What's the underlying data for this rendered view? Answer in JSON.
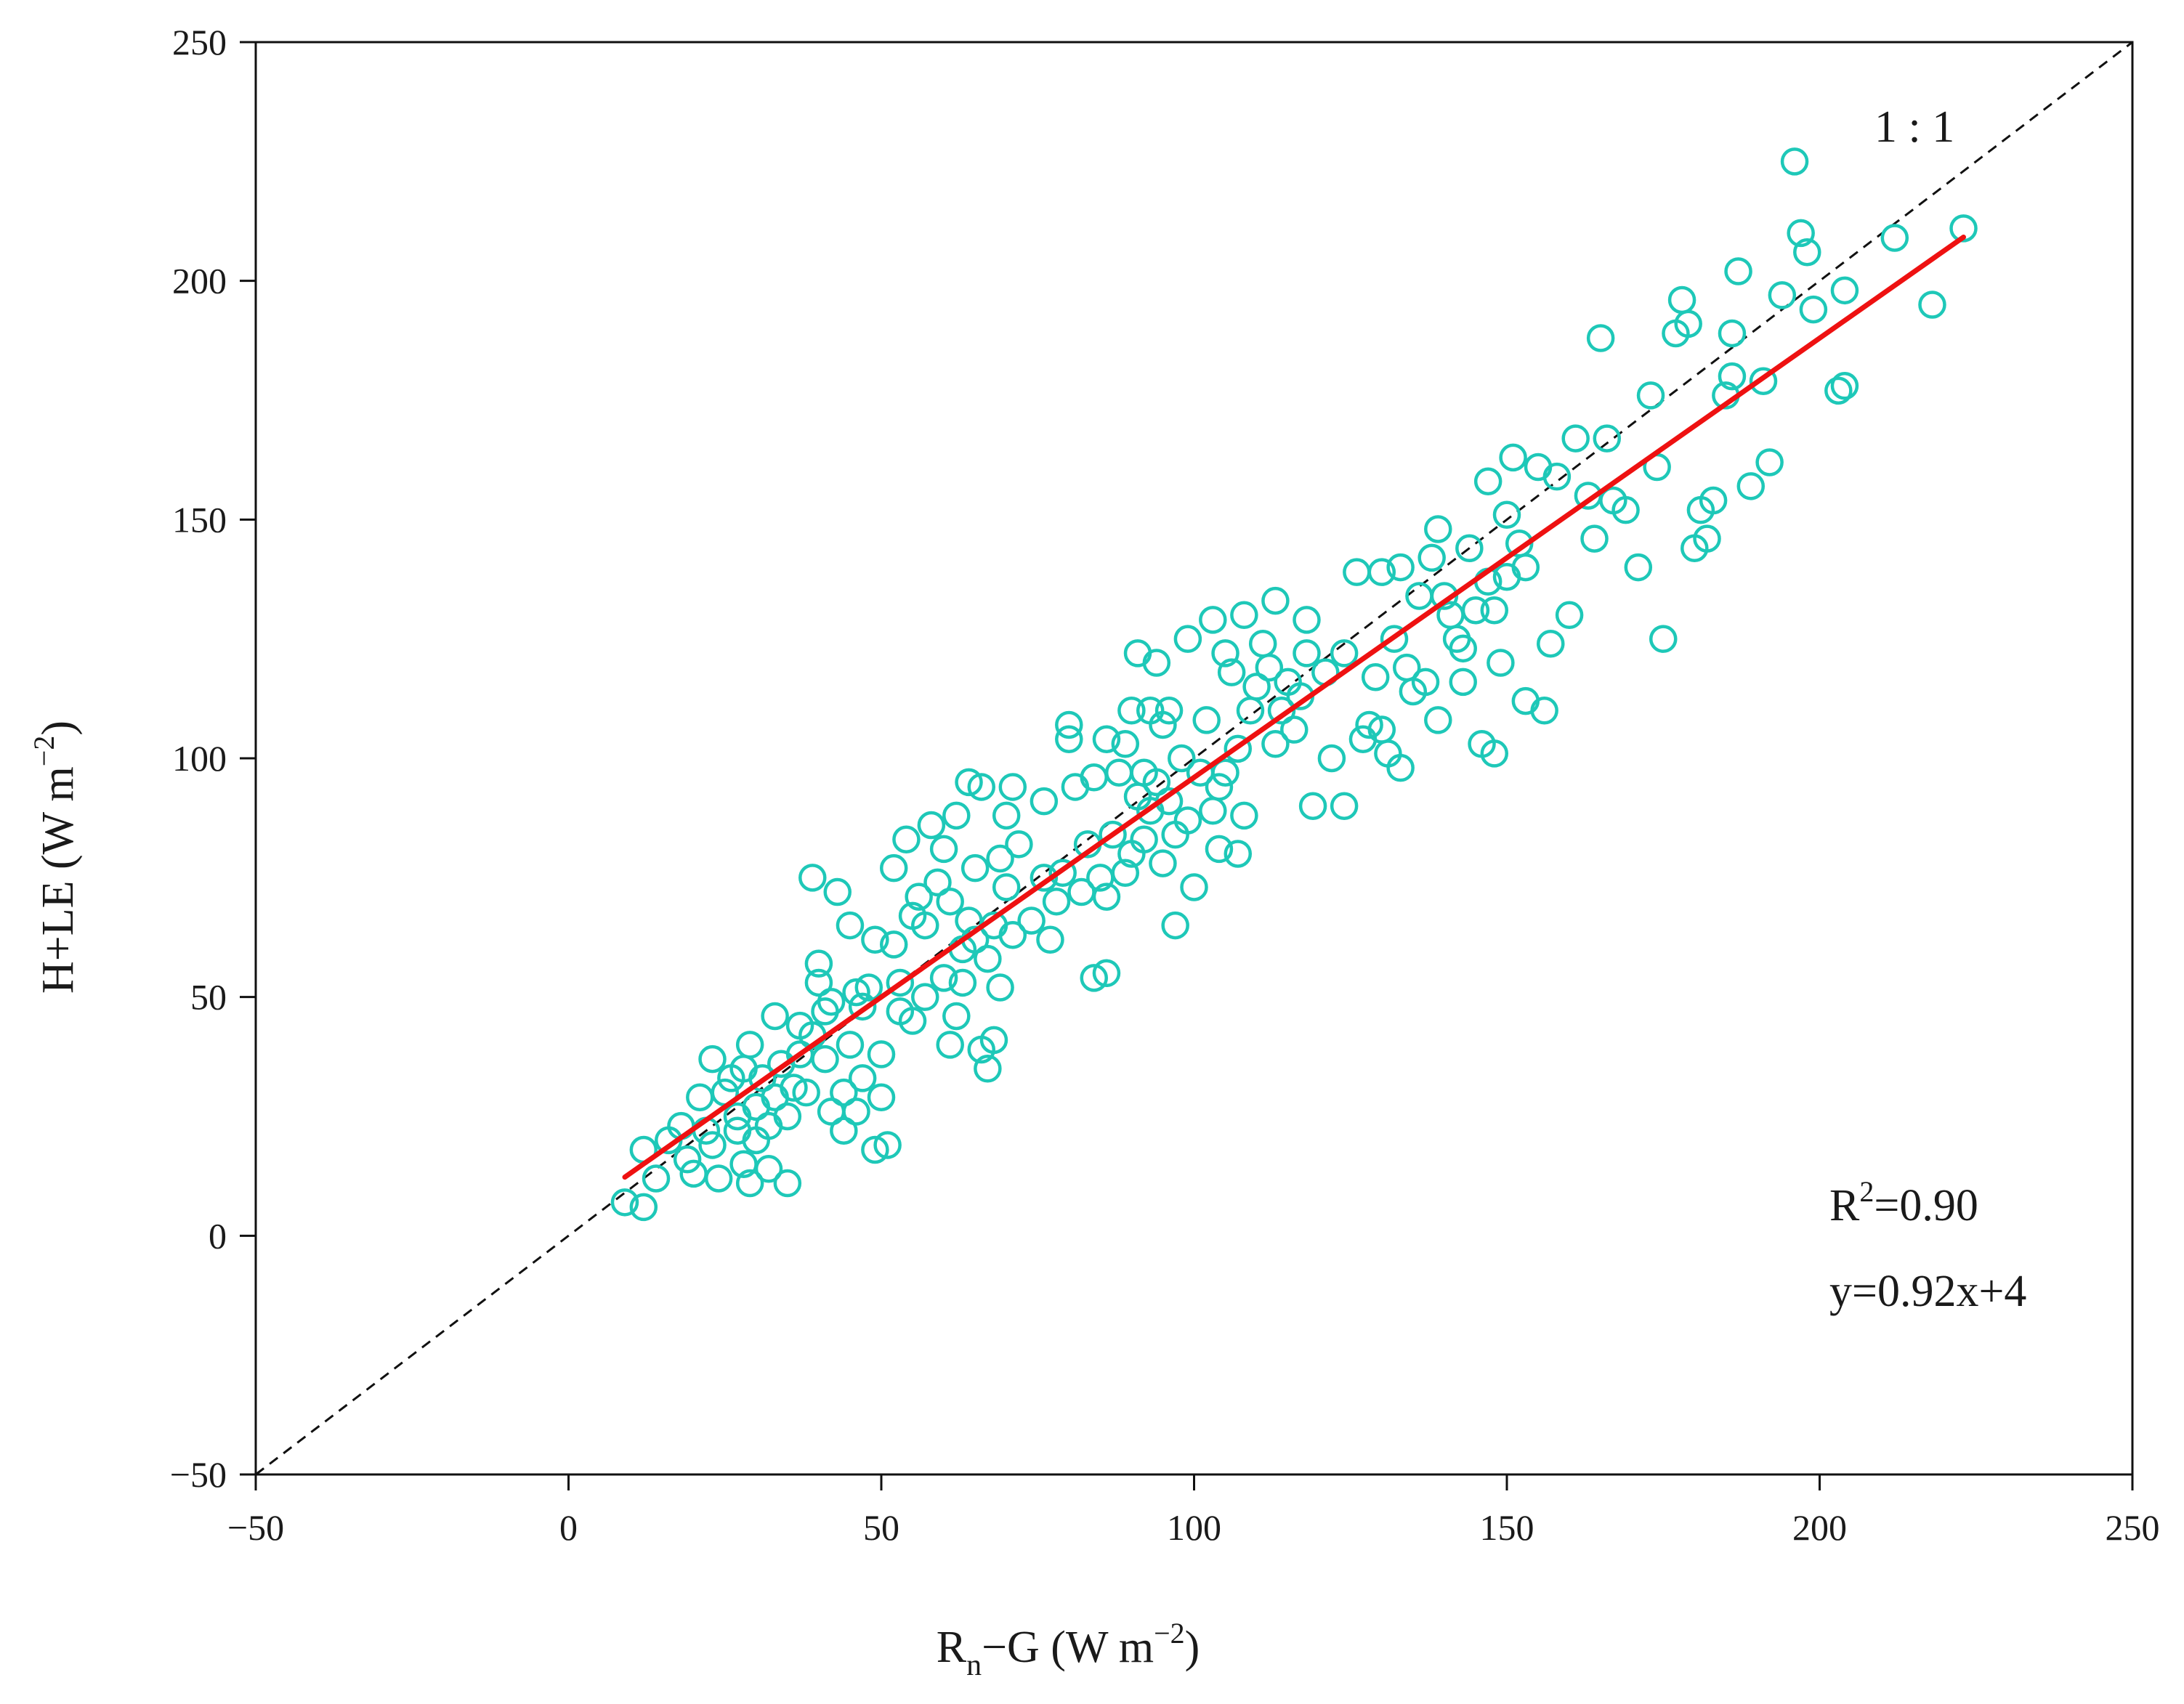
{
  "colors": {
    "points": "#1ec8b8",
    "fit_line": "#ee1111",
    "one_to_one": "#111111",
    "axes": "#111111",
    "background": "#ffffff"
  },
  "chart_data": {
    "type": "scatter",
    "title": "",
    "xlabel": {
      "main": "R",
      "sub": "n",
      "rest": "−G (W m",
      "sup": "−2",
      "close": ")"
    },
    "ylabel": {
      "main": "H+LE (W m",
      "sup": "−2",
      "close": ")"
    },
    "xlim": [
      -50,
      250
    ],
    "ylim": [
      -50,
      250
    ],
    "x_ticks": [
      -50,
      0,
      50,
      100,
      150,
      200,
      250
    ],
    "y_ticks": [
      -50,
      0,
      50,
      100,
      150,
      200,
      250
    ],
    "x_tick_labels": [
      "−50",
      "0",
      "50",
      "100",
      "150",
      "200",
      "250"
    ],
    "y_tick_labels": [
      "−50",
      "0",
      "50",
      "100",
      "150",
      "200",
      "250"
    ],
    "grid": false,
    "one_to_one_label": "1 : 1",
    "fit": {
      "slope": 0.92,
      "intercept": 4,
      "x_range": [
        9,
        223
      ]
    },
    "annotations": {
      "r2_prefix": "R",
      "r2_sup": "2",
      "r2_value": "=0.90",
      "equation": "y=0.92x+4"
    },
    "series": [
      {
        "name": "observations",
        "marker": "open-circle",
        "points": [
          [
            9,
            7
          ],
          [
            12,
            6
          ],
          [
            12,
            18
          ],
          [
            14,
            12
          ],
          [
            16,
            20
          ],
          [
            18,
            23
          ],
          [
            19,
            16
          ],
          [
            20,
            13
          ],
          [
            21,
            29
          ],
          [
            22,
            22
          ],
          [
            23,
            37
          ],
          [
            23,
            19
          ],
          [
            24,
            12
          ],
          [
            25,
            30
          ],
          [
            26,
            33
          ],
          [
            27,
            25
          ],
          [
            27,
            22
          ],
          [
            28,
            15
          ],
          [
            28,
            35
          ],
          [
            29,
            11
          ],
          [
            29,
            40
          ],
          [
            30,
            27
          ],
          [
            30,
            20
          ],
          [
            31,
            33
          ],
          [
            32,
            14
          ],
          [
            32,
            23
          ],
          [
            33,
            46
          ],
          [
            33,
            29
          ],
          [
            34,
            36
          ],
          [
            35,
            11
          ],
          [
            35,
            25
          ],
          [
            36,
            31
          ],
          [
            37,
            44
          ],
          [
            37,
            38
          ],
          [
            38,
            30
          ],
          [
            39,
            75
          ],
          [
            39,
            42
          ],
          [
            40,
            57
          ],
          [
            40,
            53
          ],
          [
            41,
            37
          ],
          [
            41,
            47
          ],
          [
            42,
            26
          ],
          [
            42,
            49
          ],
          [
            43,
            72
          ],
          [
            44,
            22
          ],
          [
            44,
            30
          ],
          [
            45,
            65
          ],
          [
            45,
            40
          ],
          [
            46,
            51
          ],
          [
            46,
            26
          ],
          [
            47,
            33
          ],
          [
            47,
            48
          ],
          [
            48,
            52
          ],
          [
            49,
            62
          ],
          [
            49,
            18
          ],
          [
            50,
            29
          ],
          [
            50,
            38
          ],
          [
            51,
            19
          ],
          [
            52,
            77
          ],
          [
            52,
            61
          ],
          [
            53,
            47
          ],
          [
            53,
            53
          ],
          [
            54,
            83
          ],
          [
            55,
            67
          ],
          [
            55,
            45
          ],
          [
            56,
            71
          ],
          [
            57,
            65
          ],
          [
            57,
            50
          ],
          [
            58,
            86
          ],
          [
            59,
            74
          ],
          [
            60,
            81
          ],
          [
            60,
            54
          ],
          [
            61,
            40
          ],
          [
            61,
            70
          ],
          [
            62,
            88
          ],
          [
            62,
            46
          ],
          [
            63,
            60
          ],
          [
            63,
            53
          ],
          [
            64,
            66
          ],
          [
            64,
            95
          ],
          [
            65,
            77
          ],
          [
            65,
            62
          ],
          [
            66,
            94
          ],
          [
            66,
            39
          ],
          [
            67,
            35
          ],
          [
            67,
            58
          ],
          [
            68,
            65
          ],
          [
            68,
            41
          ],
          [
            69,
            79
          ],
          [
            69,
            52
          ],
          [
            70,
            73
          ],
          [
            70,
            88
          ],
          [
            71,
            94
          ],
          [
            71,
            63
          ],
          [
            72,
            82
          ],
          [
            74,
            66
          ],
          [
            76,
            91
          ],
          [
            76,
            75
          ],
          [
            77,
            62
          ],
          [
            78,
            70
          ],
          [
            79,
            76
          ],
          [
            80,
            107
          ],
          [
            80,
            104
          ],
          [
            81,
            94
          ],
          [
            82,
            72
          ],
          [
            83,
            82
          ],
          [
            84,
            54
          ],
          [
            84,
            96
          ],
          [
            85,
            75
          ],
          [
            86,
            104
          ],
          [
            86,
            55
          ],
          [
            86,
            71
          ],
          [
            87,
            84
          ],
          [
            88,
            97
          ],
          [
            89,
            76
          ],
          [
            89,
            103
          ],
          [
            90,
            110
          ],
          [
            90,
            80
          ],
          [
            91,
            122
          ],
          [
            91,
            92
          ],
          [
            92,
            97
          ],
          [
            92,
            83
          ],
          [
            93,
            110
          ],
          [
            93,
            89
          ],
          [
            94,
            120
          ],
          [
            94,
            95
          ],
          [
            95,
            107
          ],
          [
            95,
            78
          ],
          [
            96,
            110
          ],
          [
            96,
            91
          ],
          [
            97,
            65
          ],
          [
            97,
            84
          ],
          [
            98,
            100
          ],
          [
            99,
            125
          ],
          [
            99,
            87
          ],
          [
            100,
            73
          ],
          [
            101,
            97
          ],
          [
            102,
            108
          ],
          [
            103,
            89
          ],
          [
            103,
            129
          ],
          [
            104,
            81
          ],
          [
            104,
            94
          ],
          [
            105,
            122
          ],
          [
            105,
            97
          ],
          [
            106,
            118
          ],
          [
            107,
            80
          ],
          [
            107,
            102
          ],
          [
            108,
            130
          ],
          [
            108,
            88
          ],
          [
            109,
            110
          ],
          [
            110,
            115
          ],
          [
            111,
            124
          ],
          [
            112,
            119
          ],
          [
            113,
            133
          ],
          [
            113,
            103
          ],
          [
            114,
            110
          ],
          [
            115,
            116
          ],
          [
            116,
            106
          ],
          [
            117,
            113
          ],
          [
            118,
            129
          ],
          [
            118,
            122
          ],
          [
            119,
            90
          ],
          [
            121,
            118
          ],
          [
            122,
            100
          ],
          [
            124,
            90
          ],
          [
            124,
            122
          ],
          [
            126,
            139
          ],
          [
            127,
            104
          ],
          [
            128,
            107
          ],
          [
            129,
            117
          ],
          [
            130,
            139
          ],
          [
            130,
            106
          ],
          [
            131,
            101
          ],
          [
            132,
            125
          ],
          [
            133,
            98
          ],
          [
            133,
            140
          ],
          [
            134,
            119
          ],
          [
            135,
            114
          ],
          [
            136,
            134
          ],
          [
            137,
            116
          ],
          [
            138,
            142
          ],
          [
            139,
            148
          ],
          [
            139,
            108
          ],
          [
            140,
            134
          ],
          [
            141,
            130
          ],
          [
            142,
            125
          ],
          [
            143,
            123
          ],
          [
            143,
            116
          ],
          [
            144,
            144
          ],
          [
            145,
            131
          ],
          [
            146,
            103
          ],
          [
            147,
            137
          ],
          [
            147,
            158
          ],
          [
            148,
            101
          ],
          [
            148,
            131
          ],
          [
            149,
            120
          ],
          [
            150,
            151
          ],
          [
            150,
            138
          ],
          [
            151,
            163
          ],
          [
            152,
            145
          ],
          [
            153,
            140
          ],
          [
            153,
            112
          ],
          [
            155,
            161
          ],
          [
            156,
            110
          ],
          [
            157,
            124
          ],
          [
            158,
            159
          ],
          [
            160,
            130
          ],
          [
            161,
            167
          ],
          [
            163,
            155
          ],
          [
            164,
            146
          ],
          [
            165,
            188
          ],
          [
            166,
            167
          ],
          [
            167,
            154
          ],
          [
            169,
            152
          ],
          [
            171,
            140
          ],
          [
            173,
            176
          ],
          [
            174,
            161
          ],
          [
            175,
            125
          ],
          [
            177,
            189
          ],
          [
            178,
            196
          ],
          [
            179,
            191
          ],
          [
            180,
            144
          ],
          [
            181,
            152
          ],
          [
            182,
            146
          ],
          [
            183,
            154
          ],
          [
            185,
            176
          ],
          [
            186,
            180
          ],
          [
            186,
            189
          ],
          [
            187,
            202
          ],
          [
            189,
            157
          ],
          [
            191,
            179
          ],
          [
            192,
            162
          ],
          [
            194,
            197
          ],
          [
            196,
            225
          ],
          [
            197,
            210
          ],
          [
            198,
            206
          ],
          [
            199,
            194
          ],
          [
            203,
            177
          ],
          [
            204,
            178
          ],
          [
            204,
            198
          ],
          [
            212,
            209
          ],
          [
            218,
            195
          ],
          [
            223,
            211
          ]
        ]
      }
    ]
  }
}
